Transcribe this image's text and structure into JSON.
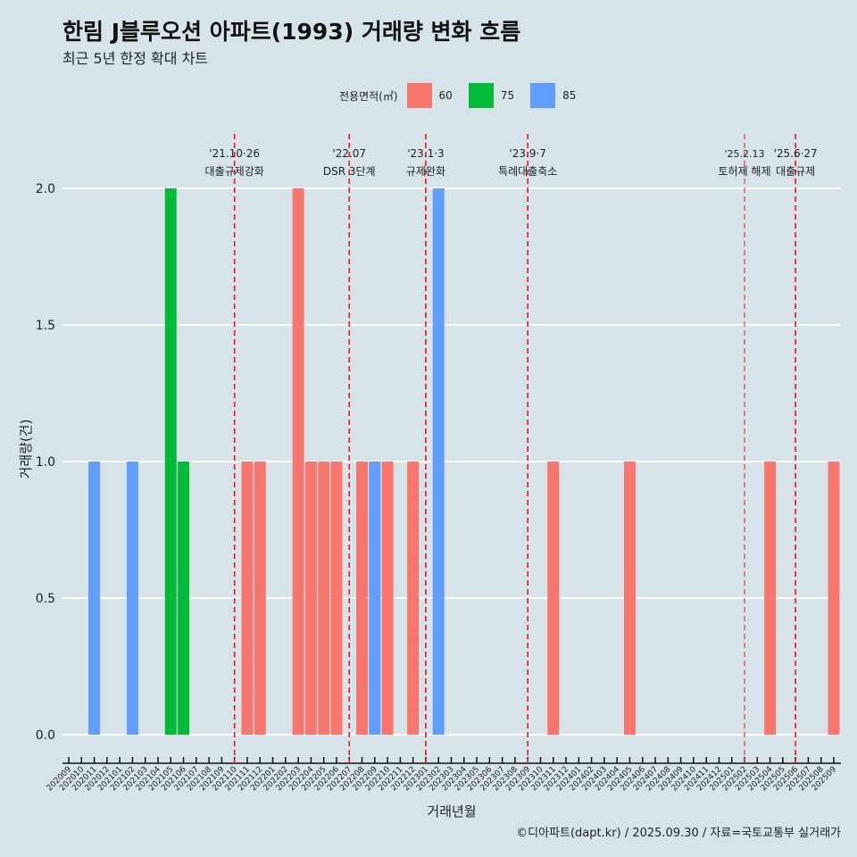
{
  "title": "한림 J블루오션 아파트(1993) 거래량 변화 흐름",
  "subtitle": "최근 5년 한정 확대 차트",
  "caption": "©디아파트(dapt.kr) / 2025.09.30 / 자료=국토교통부 실거래가",
  "legend": {
    "title": "전용면적(㎡)",
    "items": [
      {
        "label": "60",
        "color": "#f8766d"
      },
      {
        "label": "75",
        "color": "#00ba38"
      },
      {
        "label": "85",
        "color": "#619cff"
      }
    ]
  },
  "chart_data": {
    "type": "bar",
    "xlabel": "거래년월",
    "ylabel": "거래량(건)",
    "ylim": [
      -0.1,
      2.2
    ],
    "yticks": [
      "0.0",
      "0.5",
      "1.0",
      "1.5",
      "2.0"
    ],
    "categories": [
      "202009",
      "202010",
      "202011",
      "202012",
      "202101",
      "202102",
      "202103",
      "202104",
      "202105",
      "202106",
      "202107",
      "202108",
      "202109",
      "202110",
      "202111",
      "202112",
      "202201",
      "202202",
      "202203",
      "202204",
      "202205",
      "202206",
      "202207",
      "202208",
      "202209",
      "202210",
      "202211",
      "202212",
      "202301",
      "202302",
      "202303",
      "202304",
      "202305",
      "202306",
      "202307",
      "202308",
      "202309",
      "202310",
      "202311",
      "202312",
      "202401",
      "202402",
      "202403",
      "202404",
      "202405",
      "202406",
      "202407",
      "202408",
      "202409",
      "202410",
      "202411",
      "202412",
      "202501",
      "202502",
      "202503",
      "202504",
      "202505",
      "202506",
      "202507",
      "202508",
      "202509"
    ],
    "bars": [
      {
        "month": "202011",
        "area": "85",
        "value": 1
      },
      {
        "month": "202102",
        "area": "85",
        "value": 1
      },
      {
        "month": "202105",
        "area": "75",
        "value": 2
      },
      {
        "month": "202106",
        "area": "75",
        "value": 1
      },
      {
        "month": "202111",
        "area": "60",
        "value": 1
      },
      {
        "month": "202112",
        "area": "60",
        "value": 1
      },
      {
        "month": "202203",
        "area": "60",
        "value": 2
      },
      {
        "month": "202204",
        "area": "60",
        "value": 1
      },
      {
        "month": "202205",
        "area": "60",
        "value": 1
      },
      {
        "month": "202206",
        "area": "60",
        "value": 1
      },
      {
        "month": "202208",
        "area": "60",
        "value": 1
      },
      {
        "month": "202209",
        "area": "85",
        "value": 1
      },
      {
        "month": "202210",
        "area": "60",
        "value": 1
      },
      {
        "month": "202212",
        "area": "60",
        "value": 1
      },
      {
        "month": "202302",
        "area": "85",
        "value": 2
      },
      {
        "month": "202311",
        "area": "60",
        "value": 1
      },
      {
        "month": "202405",
        "area": "60",
        "value": 1
      },
      {
        "month": "202504",
        "area": "60",
        "value": 1
      },
      {
        "month": "202509",
        "area": "60",
        "value": 1
      }
    ],
    "events": [
      {
        "month": "202110",
        "date": "'21.10·26",
        "label": "대출규제강화"
      },
      {
        "month": "202207",
        "date": "'22.07",
        "label": "DSR 3단계"
      },
      {
        "month": "202301",
        "date": "'23.1·3",
        "label": "규제완화"
      },
      {
        "month": "202309",
        "date": "'23.9·7",
        "label": "특례대출축소"
      },
      {
        "month": "202502",
        "date": "'25.2.13",
        "label": "토허제 해제",
        "thin": true
      },
      {
        "month": "202506",
        "date": "'25.6·27",
        "label": "대출규제"
      }
    ]
  }
}
